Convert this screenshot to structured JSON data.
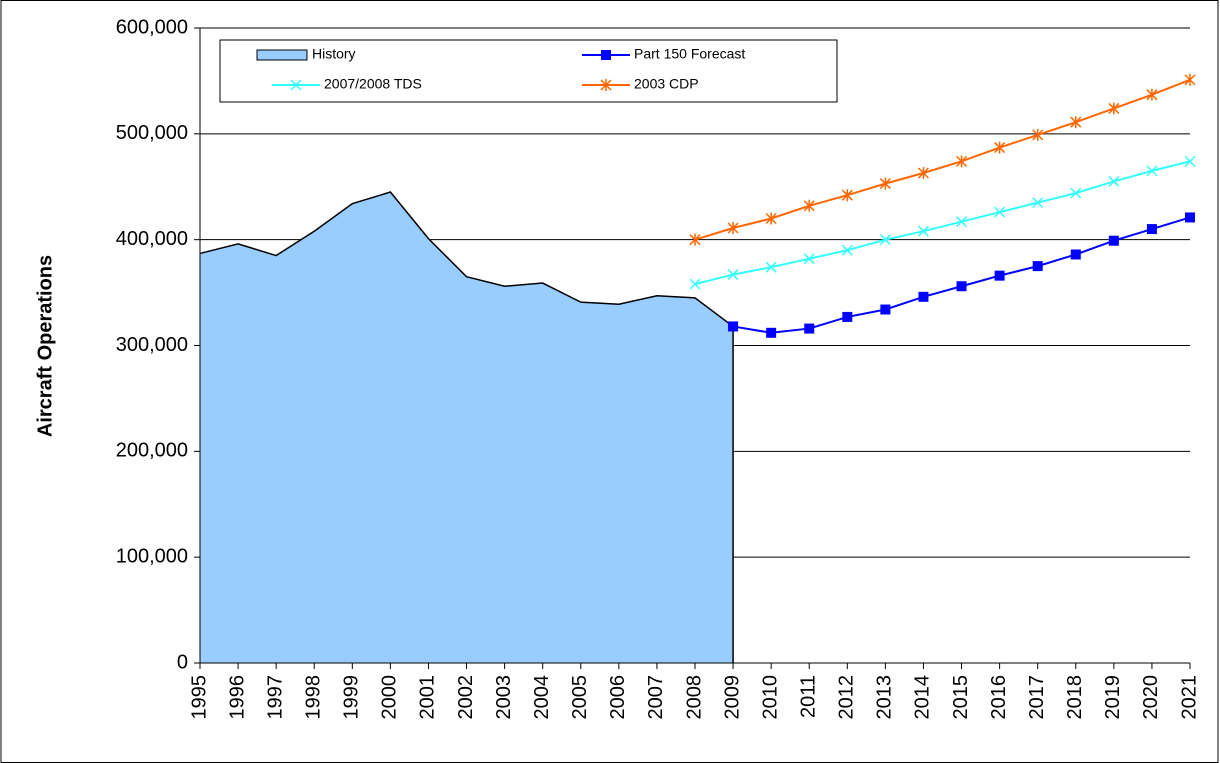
{
  "chart_data": {
    "type": "line",
    "y_label": "Aircraft Operations",
    "categories": [
      "1995",
      "1996",
      "1997",
      "1998",
      "1999",
      "2000",
      "2001",
      "2002",
      "2003",
      "2004",
      "2005",
      "2006",
      "2007",
      "2008",
      "2009",
      "2010",
      "2011",
      "2012",
      "2013",
      "2014",
      "2015",
      "2016",
      "2017",
      "2018",
      "2019",
      "2020",
      "2021"
    ],
    "series": [
      {
        "name": "History",
        "kind": "area",
        "color": "#99ccff",
        "values": [
          387000,
          396000,
          385000,
          408000,
          434000,
          445000,
          401000,
          365000,
          356000,
          359000,
          341000,
          339000,
          347000,
          345000,
          318000,
          null,
          null,
          null,
          null,
          null,
          null,
          null,
          null,
          null,
          null,
          null,
          null
        ]
      },
      {
        "name": "Part 150 Forecast",
        "kind": "line",
        "marker": "square",
        "color": "#0000ff",
        "values": [
          null,
          null,
          null,
          null,
          null,
          null,
          null,
          null,
          null,
          null,
          null,
          null,
          null,
          null,
          318000,
          312000,
          316000,
          327000,
          334000,
          346000,
          356000,
          366000,
          375000,
          386000,
          399000,
          410000,
          421000
        ]
      },
      {
        "name": "2007/2008 TDS",
        "kind": "line",
        "marker": "x",
        "color": "#33ffff",
        "values": [
          null,
          null,
          null,
          null,
          null,
          null,
          null,
          null,
          null,
          null,
          null,
          null,
          null,
          358000,
          367000,
          374000,
          382000,
          390000,
          400000,
          408000,
          417000,
          426000,
          435000,
          444000,
          455000,
          465000,
          474000
        ]
      },
      {
        "name": "2003 CDP",
        "kind": "line",
        "marker": "star",
        "color": "#ff6600",
        "values": [
          null,
          null,
          null,
          null,
          null,
          null,
          null,
          null,
          null,
          null,
          null,
          null,
          null,
          400000,
          411000,
          420000,
          432000,
          442000,
          453000,
          463000,
          474000,
          487000,
          499000,
          511000,
          524000,
          537000,
          551000
        ]
      }
    ],
    "ylim": [
      0,
      600000
    ],
    "yticks": [
      0,
      {
        "value": 100000,
        "label": "100,000"
      },
      {
        "value": 200000,
        "label": "200,000"
      },
      {
        "value": 300000,
        "label": "300,000"
      },
      {
        "value": 400000,
        "label": "400,000"
      },
      {
        "value": 500000,
        "label": "500,000"
      },
      {
        "value": 600000,
        "label": "600,000"
      }
    ],
    "grid": true
  }
}
